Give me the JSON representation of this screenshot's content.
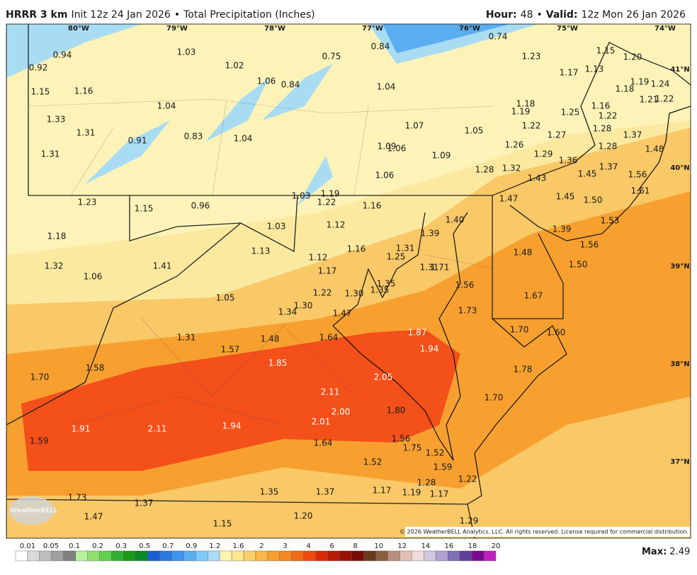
{
  "header": {
    "model": "HRRR 3 km",
    "init": "Init 12z 24 Jan 2026",
    "separator": "•",
    "product": "Total Precipitation (Inches)",
    "hour_label": "Hour:",
    "hour": "48",
    "valid_label": "Valid:",
    "valid": "12z Mon 26 Jan 2026"
  },
  "longitudes": [
    "80°W",
    "79°W",
    "78°W",
    "77°W",
    "76°W",
    "75°W",
    "74°W"
  ],
  "latitudes": [
    "41°N",
    "40°N",
    "39°N",
    "38°N",
    "37°N"
  ],
  "values": [
    "0.94",
    "0.92",
    "1.03",
    "1.02",
    "0.75",
    "0.84",
    "0.74",
    "1.23",
    "1.15",
    "1.20",
    "1.17",
    "1.13",
    "1.15",
    "1.16",
    "1.06",
    "0.84",
    "1.04",
    "1.19",
    "1.24",
    "1.18",
    "1.04",
    "1.18",
    "1.19",
    "1.16",
    "1.25",
    "1.22",
    "1.21",
    "1.22",
    "1.33",
    "1.31",
    "1.07",
    "1.05",
    "1.22",
    "1.28",
    "1.27",
    "1.37",
    "0.91",
    "0.83",
    "1.04",
    "1.31",
    "1.09",
    "1.06",
    "1.09",
    "1.26",
    "1.29",
    "1.36",
    "1.28",
    "1.48",
    "1.37",
    "1.45",
    "1.56",
    "1.28",
    "1.32",
    "1.43",
    "1.06",
    "1.61",
    "1.03",
    "1.19",
    "1.22",
    "1.16",
    "1.47",
    "1.45",
    "1.50",
    "1.23",
    "1.15",
    "0.96",
    "1.40",
    "1.53",
    "1.03",
    "1.12",
    "1.39",
    "1.39",
    "1.18",
    "1.56",
    "1.13",
    "1.16",
    "1.31",
    "1.48",
    "1.12",
    "1.25",
    "1.32",
    "1.41",
    "1.31",
    "1.71",
    "1.50",
    "1.17",
    "1.06",
    "1.35",
    "1.56",
    "1.35",
    "1.22",
    "1.30",
    "1.67",
    "1.05",
    "1.30",
    "1.73",
    "1.34",
    "1.47",
    "1.87",
    "1.70",
    "1.60",
    "1.64",
    "1.31",
    "1.48",
    "1.94",
    "1.57",
    "1.85",
    "1.58",
    "1.78",
    "1.70",
    "2.05",
    "2.11",
    "1.70",
    "2.00",
    "1.80",
    "2.01",
    "1.91",
    "2.11",
    "1.94",
    "1.56",
    "1.59",
    "1.64",
    "1.75",
    "1.52",
    "1.52",
    "1.59",
    "1.28",
    "1.22",
    "1.35",
    "1.37",
    "1.17",
    "1.19",
    "1.17",
    "1.73",
    "1.37",
    "1.47",
    "1.20",
    "1.29",
    "1.15"
  ],
  "copyright": "© 2026 WeatherBELL Analytics, LLC. All rights reserved. License required for commercial distribution.",
  "logo": "WeatherBELL",
  "colorbar": {
    "labels": [
      "0.01",
      "0.05",
      "0.1",
      "0.2",
      "0.3",
      "0.5",
      "0.7",
      "0.9",
      "1.2",
      "1.6",
      "2",
      "3",
      "4",
      "6",
      "8",
      "10",
      "12",
      "14",
      "16",
      "18",
      "20"
    ],
    "colors": [
      "#ffffff",
      "#d9d9d9",
      "#bdbdbd",
      "#a0a0a0",
      "#808080",
      "#b8f0a0",
      "#90e070",
      "#60d050",
      "#30b030",
      "#1a9a1a",
      "#0a8a2a",
      "#1c5fd0",
      "#2a7ae0",
      "#3f94ec",
      "#5aaef0",
      "#80c8f5",
      "#a8dcf8",
      "#fdf5b0",
      "#fde890",
      "#fbd068",
      "#f9b848",
      "#f7a030",
      "#f58a20",
      "#f46a18",
      "#f04a10",
      "#d82a08",
      "#b81a08",
      "#981008",
      "#7a0a0a",
      "#6a3a20",
      "#8a6040",
      "#b89080",
      "#e0c0b0",
      "#f0dcd8",
      "#d0c8e0",
      "#b0a0d0",
      "#8070b8",
      "#604098",
      "#7a0a90",
      "#c020c0"
    ]
  },
  "max": {
    "label": "Max:",
    "value": "2.49"
  }
}
